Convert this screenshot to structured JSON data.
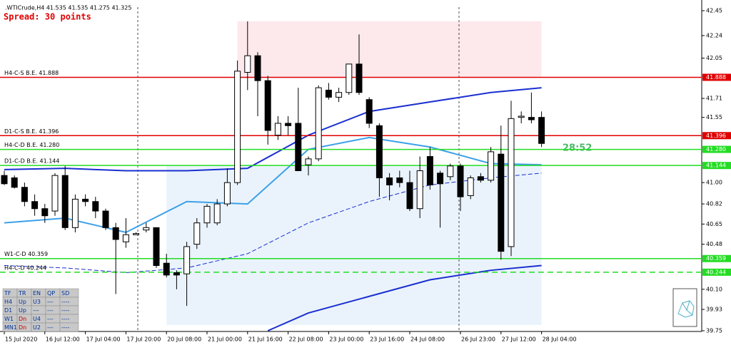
{
  "chart_data": {
    "type": "candlestick",
    "title": ".WTICrude,H4  41.535 41.535 41.275 41.325",
    "subtitle": "Spread: 30 points",
    "countdown": "28:52",
    "ylim": [
      39.75,
      42.45
    ],
    "yticks": [
      42.45,
      42.24,
      42.05,
      41.71,
      41.55,
      {
        "value": 41,
        "label": "41.00"
      },
      40.82,
      40.65,
      40.48,
      {
        "value": 40.1,
        "label": "40.10"
      },
      39.93,
      39.75
    ],
    "xticks": [
      {
        "value": 0,
        "label": "15 Jul 2020"
      },
      {
        "value": 4,
        "label": "16 Jul 12:00"
      },
      {
        "value": 8,
        "label": "17 Jul 04:00"
      },
      {
        "value": 12,
        "label": "17 Jul 20:00"
      },
      {
        "value": 16,
        "label": "20 Jul 08:00"
      },
      {
        "value": 20,
        "label": "21 Jul 00:00"
      },
      {
        "value": 24,
        "label": "21 Jul 16:00"
      },
      {
        "value": 28,
        "label": "22 Jul 08:00"
      },
      {
        "value": 32,
        "label": "23 Jul 00:00"
      },
      {
        "value": 36,
        "label": "23 Jul 16:00"
      },
      {
        "value": 40,
        "label": "24 Jul 08:00"
      },
      {
        "value": 45,
        "label": "26 Jul 23:00"
      },
      {
        "value": 49,
        "label": "27 Jul 12:00"
      },
      {
        "value": 53,
        "label": "28 Jul 04:00"
      }
    ],
    "candles": {
      "open": [
        41.06,
        41.04,
        40.96,
        40.84,
        40.78,
        40.76,
        41.06,
        40.62,
        40.86,
        40.84,
        40.76,
        40.62,
        40.5,
        40.56,
        40.6,
        40.62,
        40.32,
        40.24,
        40.23,
        40.48,
        40.66,
        40.66,
        40.82,
        41.0,
        41.93,
        42.07,
        41.86,
        41.4,
        41.5,
        41.5,
        41.15,
        41.2,
        41.78,
        41.72,
        41.76,
        42.0,
        41.7,
        41.48,
        41.04,
        41.04,
        41.0,
        40.78,
        41.22,
        41.08,
        41.05,
        41.14,
        40.89,
        41.05,
        41.02,
        41.24,
        40.46,
        41.55,
        41.55,
        41.55
      ],
      "high": [
        41.1,
        41.06,
        41.0,
        40.9,
        40.82,
        41.08,
        41.14,
        40.9,
        40.9,
        40.88,
        40.78,
        40.66,
        40.7,
        40.58,
        40.66,
        40.62,
        40.4,
        40.26,
        40.5,
        40.7,
        40.82,
        40.86,
        41.12,
        42.03,
        42.36,
        42.1,
        41.9,
        41.56,
        41.56,
        41.8,
        41.22,
        41.82,
        41.84,
        41.8,
        42.0,
        42.25,
        41.72,
        41.5,
        41.08,
        41.1,
        41.1,
        41.22,
        41.3,
        41.1,
        41.16,
        41.16,
        41.06,
        41.08,
        41.3,
        41.48,
        41.69,
        41.6,
        41.76,
        41.6
      ],
      "low": [
        40.98,
        40.95,
        40.8,
        40.72,
        40.66,
        40.72,
        40.6,
        40.58,
        40.8,
        40.7,
        40.6,
        40.06,
        40.45,
        40.56,
        40.58,
        40.28,
        40.2,
        40.1,
        39.96,
        40.44,
        40.62,
        40.64,
        40.8,
        40.98,
        41.78,
        41.56,
        41.32,
        41.36,
        41.4,
        41.1,
        41.06,
        41.18,
        41.7,
        41.68,
        41.74,
        41.74,
        41.46,
        40.88,
        40.85,
        40.96,
        40.76,
        40.7,
        40.94,
        40.62,
        41.02,
        40.76,
        40.86,
        41.0,
        41.0,
        40.35,
        40.38,
        41.5,
        41.5,
        41.3
      ],
      "close": [
        40.99,
        40.96,
        40.84,
        40.78,
        40.72,
        41.06,
        40.62,
        40.86,
        40.84,
        40.76,
        40.62,
        40.52,
        40.56,
        40.57,
        40.62,
        40.3,
        40.22,
        40.22,
        40.46,
        40.66,
        40.8,
        40.82,
        41.0,
        41.94,
        42.07,
        41.86,
        41.44,
        41.5,
        41.48,
        41.1,
        41.2,
        41.8,
        41.72,
        41.76,
        42.0,
        41.76,
        41.5,
        41.04,
        40.98,
        41.0,
        40.78,
        41.1,
        40.98,
        40.99,
        41.14,
        40.88,
        41.04,
        41.02,
        41.26,
        40.42,
        41.54,
        41.56,
        41.53,
        41.33
      ]
    },
    "indicators": [
      {
        "color": "#1a2fd0",
        "style": "solid",
        "x": [
          0,
          6,
          12,
          18,
          24,
          30,
          36,
          42,
          48,
          53
        ],
        "values": [
          41.11,
          41.12,
          41.1,
          41.1,
          41.12,
          41.4,
          41.6,
          41.68,
          41.76,
          41.8
        ]
      },
      {
        "color": "#3ca0e8",
        "style": "solid",
        "x": [
          0,
          6,
          12,
          18,
          24,
          30,
          36,
          42,
          48,
          53
        ],
        "values": [
          40.66,
          40.7,
          40.58,
          40.84,
          40.82,
          41.28,
          41.38,
          41.3,
          41.16,
          41.15
        ]
      },
      {
        "color": "#1a2fd0",
        "style": "dashed",
        "x": [
          0,
          6,
          12,
          18,
          24,
          30,
          36,
          42,
          48,
          53
        ],
        "values": [
          40.3,
          40.28,
          40.24,
          40.28,
          40.4,
          40.66,
          40.84,
          40.98,
          41.04,
          41.08
        ]
      },
      {
        "color": "#1a2fd0",
        "style": "solid",
        "x": [
          26,
          30,
          36,
          42,
          48,
          53
        ],
        "values": [
          39.75,
          39.9,
          40.04,
          40.18,
          40.26,
          40.3
        ]
      }
    ],
    "zones": [
      {
        "x": [
          23,
          53
        ],
        "y": [
          41.888,
          42.36
        ],
        "color": "#fde8ec"
      },
      {
        "x": [
          16,
          53
        ],
        "y": [
          39.8,
          41.144
        ],
        "color": "#eaf3fc"
      }
    ],
    "levels": [
      {
        "label": "H4-C-S B.E. 41.888",
        "value": 41.888,
        "value_label": "41.888",
        "color": "#e00000",
        "style": "solid"
      },
      {
        "label": "D1-C-S B.E. 41.396",
        "value": 41.396,
        "value_label": "41.396",
        "color": "#e00000",
        "style": "solid"
      },
      {
        "label": "H4-C-D B.E. 41.280",
        "value": 41.28,
        "value_label": "41.280",
        "color": "#22dd22",
        "style": "solid"
      },
      {
        "label": "D1-C-D B.E. 41.144",
        "value": 41.144,
        "value_label": "41.144",
        "color": "#22dd22",
        "style": "solid"
      },
      {
        "label": "W1-C-D 40.359",
        "value": 40.359,
        "value_label": "40.359",
        "color": "#22dd22",
        "style": "solid"
      },
      {
        "label": "H4-C-D 40.244",
        "value": 40.244,
        "value_label": "40.244",
        "color": "#22dd22",
        "style": "dashed"
      }
    ]
  },
  "table": {
    "header": [
      "TF",
      "TR",
      "EN",
      "QP",
      "SD"
    ],
    "rows": [
      [
        "H4",
        "Up",
        "U3",
        "---",
        "----"
      ],
      [
        "D1",
        "Up",
        "---",
        "---",
        "----"
      ],
      [
        "W1",
        "Dn",
        "U4",
        "---",
        "----"
      ],
      [
        "MN1",
        "Dn",
        "U2",
        "---",
        "----"
      ]
    ]
  }
}
